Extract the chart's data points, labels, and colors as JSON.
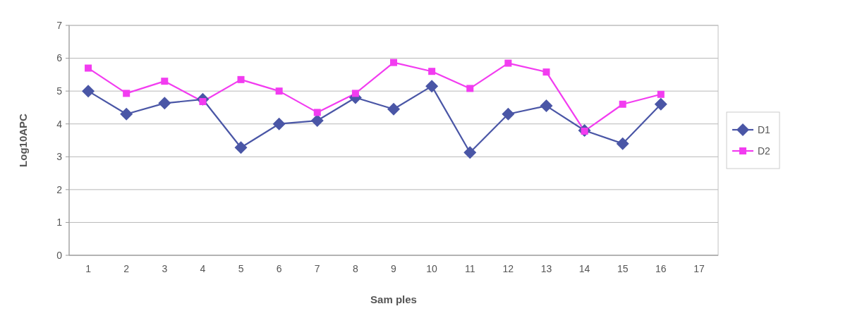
{
  "chart_data": {
    "type": "line",
    "xlabel": "Sam ples",
    "ylabel": "Log10APC",
    "categories": [
      "1",
      "2",
      "3",
      "4",
      "5",
      "6",
      "7",
      "8",
      "9",
      "10",
      "11",
      "12",
      "13",
      "14",
      "15",
      "16",
      "17"
    ],
    "series": [
      {
        "name": "D1",
        "color": "#4a56a6",
        "marker": "diamond",
        "values": [
          5.0,
          4.3,
          4.63,
          4.75,
          3.28,
          4.0,
          4.1,
          4.8,
          4.45,
          5.15,
          3.13,
          4.3,
          4.55,
          3.8,
          3.4,
          4.6,
          null
        ]
      },
      {
        "name": "D2",
        "color": "#f23cf0",
        "marker": "square",
        "values": [
          5.7,
          4.93,
          5.3,
          4.68,
          5.35,
          5.0,
          4.35,
          4.93,
          5.87,
          5.6,
          5.08,
          5.85,
          5.58,
          3.78,
          4.6,
          4.9,
          null
        ]
      }
    ],
    "ylim": [
      0,
      7
    ],
    "yticks": [
      0,
      1,
      2,
      3,
      4,
      5,
      6,
      7
    ],
    "grid": "y",
    "legend": "right"
  }
}
